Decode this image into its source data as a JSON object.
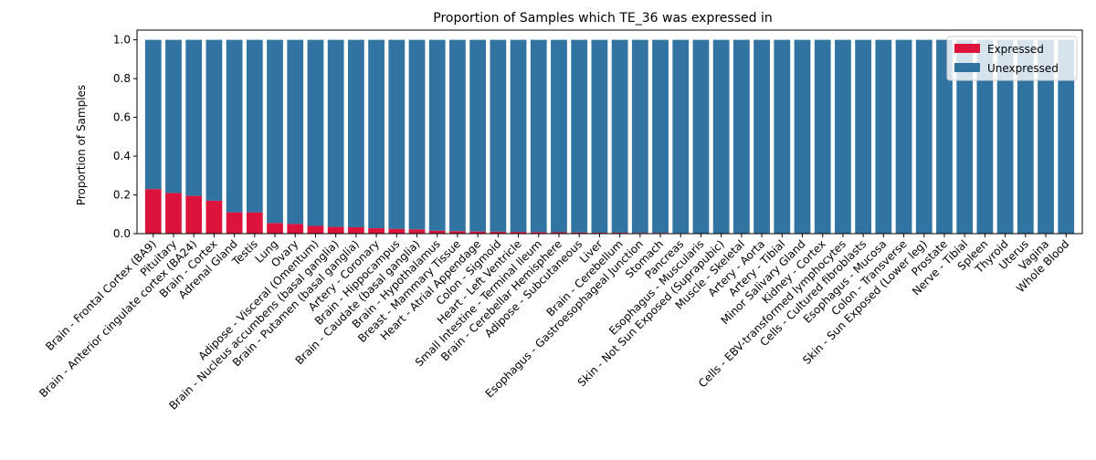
{
  "chart_data": {
    "type": "bar",
    "stacked": true,
    "title": "Proportion of Samples which TE_36 was expressed in",
    "xlabel": "",
    "ylabel": "Proportion of Samples",
    "ylim": [
      0,
      1.05
    ],
    "yticks": [
      0.0,
      0.2,
      0.4,
      0.6,
      0.8,
      1.0
    ],
    "ytick_labels": [
      "0.0",
      "0.2",
      "0.4",
      "0.6",
      "0.8",
      "1.0"
    ],
    "grid": false,
    "legend": "top-right",
    "categories": [
      "Brain - Frontal Cortex (BA9)",
      "Pituitary",
      "Brain - Anterior cingulate cortex (BA24)",
      "Brain - Cortex",
      "Adrenal Gland",
      "Testis",
      "Lung",
      "Ovary",
      "Adipose - Visceral (Omentum)",
      "Brain - Nucleus accumbens (basal ganglia)",
      "Brain - Putamen (basal ganglia)",
      "Artery - Coronary",
      "Brain - Hippocampus",
      "Brain - Caudate (basal ganglia)",
      "Brain - Hypothalamus",
      "Breast - Mammary Tissue",
      "Heart - Atrial Appendage",
      "Colon - Sigmoid",
      "Heart - Left Ventricle",
      "Small Intestine - Terminal Ileum",
      "Brain - Cerebellar Hemisphere",
      "Adipose - Subcutaneous",
      "Liver",
      "Brain - Cerebellum",
      "Esophagus - Gastroesophageal Junction",
      "Stomach",
      "Pancreas",
      "Esophagus - Muscularis",
      "Skin - Not Sun Exposed (Suprapubic)",
      "Muscle - Skeletal",
      "Artery - Aorta",
      "Artery - Tibial",
      "Minor Salivary Gland",
      "Kidney - Cortex",
      "Cells - EBV-transformed lymphocytes",
      "Cells - Cultured fibroblasts",
      "Esophagus - Mucosa",
      "Colon - Transverse",
      "Skin - Sun Exposed (Lower leg)",
      "Prostate",
      "Nerve - Tibial",
      "Spleen",
      "Thyroid",
      "Uterus",
      "Vagina",
      "Whole Blood"
    ],
    "series": [
      {
        "name": "Expressed",
        "color": "#dc143c",
        "values": [
          0.23,
          0.21,
          0.195,
          0.17,
          0.11,
          0.11,
          0.055,
          0.05,
          0.04,
          0.035,
          0.033,
          0.028,
          0.025,
          0.022,
          0.015,
          0.013,
          0.011,
          0.01,
          0.009,
          0.008,
          0.007,
          0.006,
          0.005,
          0.005,
          0.004,
          0.004,
          0.003,
          0,
          0,
          0,
          0,
          0,
          0,
          0,
          0,
          0,
          0,
          0,
          0,
          0,
          0,
          0,
          0,
          0,
          0,
          0
        ]
      },
      {
        "name": "Unexpressed",
        "color": "#3274a1",
        "values": [
          0.77,
          0.79,
          0.805,
          0.83,
          0.89,
          0.89,
          0.945,
          0.95,
          0.96,
          0.965,
          0.967,
          0.972,
          0.975,
          0.978,
          0.985,
          0.987,
          0.989,
          0.99,
          0.991,
          0.992,
          0.993,
          0.994,
          0.995,
          0.995,
          0.996,
          0.996,
          0.997,
          1,
          1,
          1,
          1,
          1,
          1,
          1,
          1,
          1,
          1,
          1,
          1,
          1,
          1,
          1,
          1,
          1,
          1,
          1
        ]
      }
    ]
  }
}
